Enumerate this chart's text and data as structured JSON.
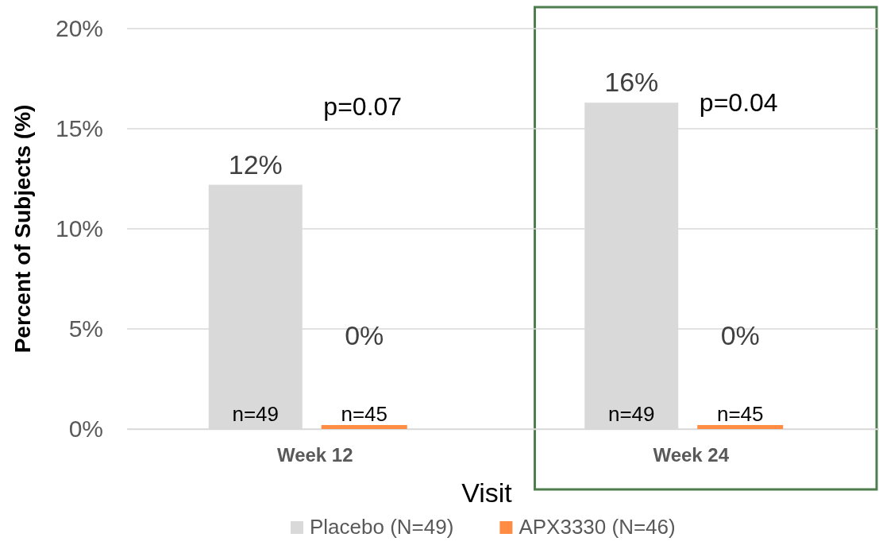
{
  "chart_data": {
    "type": "bar",
    "xlabel": "Visit",
    "ylabel": "Percent of Subjects (%)",
    "categories": [
      "Week 12",
      "Week 24"
    ],
    "series": [
      {
        "name": "Placebo (N=49)",
        "color": "#d9d9d9",
        "values": [
          12.2,
          16.3
        ],
        "value_labels": [
          "12%",
          "16%"
        ]
      },
      {
        "name": "APX3330 (N=46)",
        "color": "#ff8c42",
        "values": [
          0.2,
          0.2
        ],
        "value_labels": [
          "0%",
          "0%"
        ]
      }
    ],
    "ylim": [
      0,
      20
    ],
    "yticks": [
      {
        "value": 0,
        "label": "0%"
      },
      {
        "value": 5,
        "label": "5%"
      },
      {
        "value": 10,
        "label": "10%"
      },
      {
        "value": 15,
        "label": "15%"
      },
      {
        "value": 20,
        "label": "20%"
      }
    ],
    "grid": "y",
    "legend": "bottom",
    "annotations": [
      "n=49",
      "n=45",
      "n=49",
      "n=45",
      "p=0.07",
      "p=0.04"
    ]
  }
}
